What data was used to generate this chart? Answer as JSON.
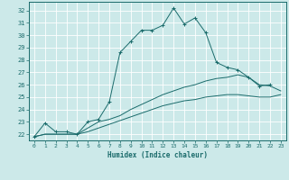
{
  "xlabel": "Humidex (Indice chaleur)",
  "xlim": [
    -0.5,
    23.5
  ],
  "ylim": [
    21.5,
    32.7
  ],
  "xticks": [
    0,
    1,
    2,
    3,
    4,
    5,
    6,
    7,
    8,
    9,
    10,
    11,
    12,
    13,
    14,
    15,
    16,
    17,
    18,
    19,
    20,
    21,
    22,
    23
  ],
  "yticks": [
    22,
    23,
    24,
    25,
    26,
    27,
    28,
    29,
    30,
    31,
    32
  ],
  "bg_color": "#cce9e9",
  "line_color": "#1a6b6b",
  "grid_color": "#ffffff",
  "line1_x": [
    0,
    1,
    2,
    3,
    4,
    5,
    6,
    7,
    8,
    9,
    10,
    11,
    12,
    13,
    14,
    15,
    16,
    17,
    18,
    19,
    20,
    21,
    22
  ],
  "line1_y": [
    21.8,
    22.9,
    22.2,
    22.2,
    22.0,
    23.0,
    23.2,
    24.6,
    28.6,
    29.5,
    30.4,
    30.4,
    30.8,
    32.2,
    30.9,
    31.4,
    30.2,
    27.8,
    27.4,
    27.2,
    26.6,
    25.9,
    26.0
  ],
  "line2_x": [
    0,
    1,
    2,
    3,
    4,
    5,
    6,
    7,
    8,
    9,
    10,
    11,
    12,
    13,
    14,
    15,
    16,
    17,
    18,
    19,
    20,
    21,
    22,
    23
  ],
  "line2_y": [
    21.8,
    22.0,
    22.0,
    22.0,
    22.0,
    22.5,
    23.0,
    23.2,
    23.5,
    24.0,
    24.4,
    24.8,
    25.2,
    25.5,
    25.8,
    26.0,
    26.3,
    26.5,
    26.6,
    26.8,
    26.6,
    26.0,
    25.9,
    25.5
  ],
  "line3_x": [
    0,
    1,
    2,
    3,
    4,
    5,
    6,
    7,
    8,
    9,
    10,
    11,
    12,
    13,
    14,
    15,
    16,
    17,
    18,
    19,
    20,
    21,
    22,
    23
  ],
  "line3_y": [
    21.8,
    22.0,
    22.0,
    22.0,
    22.0,
    22.2,
    22.5,
    22.8,
    23.1,
    23.4,
    23.7,
    24.0,
    24.3,
    24.5,
    24.7,
    24.8,
    25.0,
    25.1,
    25.2,
    25.2,
    25.1,
    25.0,
    25.0,
    25.2
  ]
}
